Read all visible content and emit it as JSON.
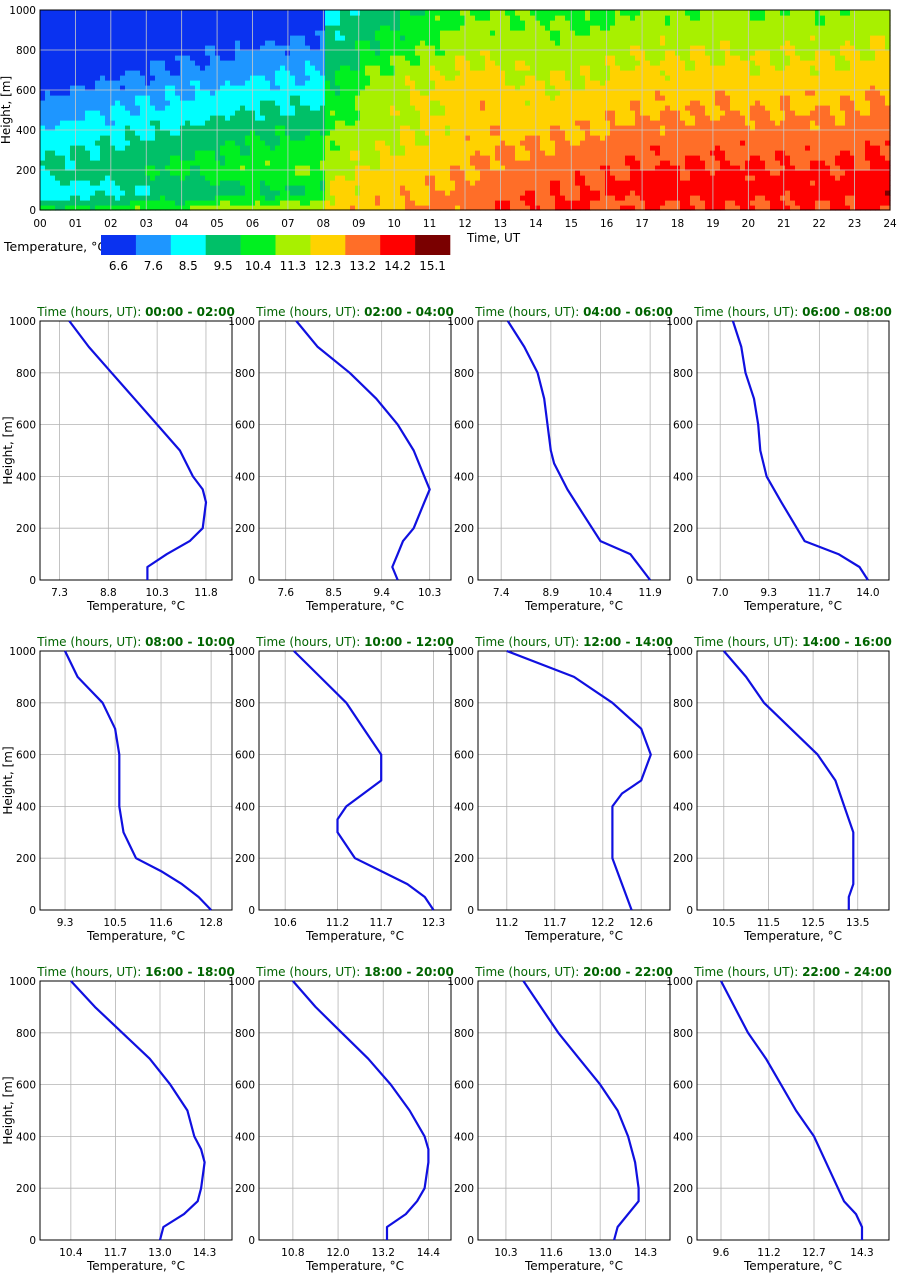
{
  "colors": {
    "profile_line": "#1010e0",
    "title_green": "#006400",
    "grid": "#b4b4b4",
    "frame": "#000000"
  },
  "heatmap": {
    "ylabel": "Height, [m]",
    "xlabel": "Time, UT",
    "x_ticks": [
      "00",
      "01",
      "02",
      "03",
      "04",
      "05",
      "06",
      "07",
      "08",
      "09",
      "10",
      "11",
      "12",
      "13",
      "14",
      "15",
      "16",
      "17",
      "18",
      "19",
      "20",
      "21",
      "22",
      "23",
      "24"
    ],
    "y_ticks": [
      "0",
      "200",
      "400",
      "600",
      "800",
      "1000"
    ],
    "ylim": [
      0,
      1000
    ],
    "xlim": [
      0,
      24
    ],
    "legend": {
      "label": "Temperature, °C",
      "values": [
        "6.6",
        "7.6",
        "8.5",
        "9.5",
        "10.4",
        "11.3",
        "12.3",
        "13.2",
        "14.2",
        "15.1"
      ],
      "colors": [
        "#0a32f0",
        "#1e96ff",
        "#00ffff",
        "#00c068",
        "#00f020",
        "#a8f000",
        "#ffd200",
        "#ff6e28",
        "#ff0000",
        "#7a0000"
      ]
    }
  },
  "chart_data": [
    {
      "type": "line",
      "title_prefix": "Time (hours, UT):",
      "title_range": "00:00 - 02:00",
      "xlabel": "Temperature, °C",
      "ylabel": "Height, [m]",
      "x_ticks": [
        "7.3",
        "8.8",
        "10.3",
        "11.8"
      ],
      "xlim": [
        6.7,
        12.6
      ],
      "ylim": [
        0,
        1000
      ],
      "y_ticks": [
        "0",
        "200",
        "400",
        "600",
        "800",
        "1000"
      ],
      "x": [
        10.0,
        10.0,
        10.6,
        11.3,
        11.7,
        11.8,
        11.7,
        11.4,
        11.0,
        10.3,
        9.6,
        8.9,
        8.2,
        7.6
      ],
      "y": [
        0,
        50,
        100,
        150,
        200,
        300,
        350,
        400,
        500,
        600,
        700,
        800,
        900,
        1000
      ]
    },
    {
      "type": "line",
      "title_prefix": "Time (hours, UT):",
      "title_range": "02:00 - 04:00",
      "xlabel": "Temperature, °C",
      "ylabel": "Height, [m]",
      "x_ticks": [
        "7.6",
        "8.5",
        "9.4",
        "10.3"
      ],
      "xlim": [
        7.1,
        10.7
      ],
      "ylim": [
        0,
        1000
      ],
      "y_ticks": [
        "0",
        "200",
        "400",
        "600",
        "800",
        "1000"
      ],
      "x": [
        9.7,
        9.6,
        9.7,
        9.8,
        10.0,
        10.2,
        10.3,
        10.2,
        10.0,
        9.7,
        9.3,
        8.8,
        8.2,
        7.8
      ],
      "y": [
        0,
        50,
        100,
        150,
        200,
        300,
        350,
        400,
        500,
        600,
        700,
        800,
        900,
        1000
      ]
    },
    {
      "type": "line",
      "title_prefix": "Time (hours, UT):",
      "title_range": "04:00 - 06:00",
      "xlabel": "Temperature, °C",
      "ylabel": "Height, [m]",
      "x_ticks": [
        "7.4",
        "8.9",
        "10.4",
        "11.9"
      ],
      "xlim": [
        6.7,
        12.5
      ],
      "ylim": [
        0,
        1000
      ],
      "y_ticks": [
        "0",
        "200",
        "400",
        "600",
        "800",
        "1000"
      ],
      "x": [
        11.9,
        11.3,
        10.4,
        9.9,
        9.4,
        9.0,
        8.9,
        8.8,
        8.7,
        8.5,
        8.1,
        7.6
      ],
      "y": [
        0,
        100,
        150,
        250,
        350,
        450,
        500,
        600,
        700,
        800,
        900,
        1000
      ]
    },
    {
      "type": "line",
      "title_prefix": "Time (hours, UT):",
      "title_range": "06:00 - 08:00",
      "xlabel": "Temperature, °C",
      "ylabel": "Height, [m]",
      "x_ticks": [
        "7.0",
        "9.3",
        "11.7",
        "14.0"
      ],
      "xlim": [
        5.9,
        15.0
      ],
      "ylim": [
        0,
        1000
      ],
      "y_ticks": [
        "0",
        "200",
        "400",
        "600",
        "800",
        "1000"
      ],
      "x": [
        14.0,
        13.6,
        12.6,
        11.0,
        9.9,
        9.2,
        8.9,
        8.8,
        8.6,
        8.2,
        8.0,
        7.6
      ],
      "y": [
        0,
        50,
        100,
        150,
        300,
        400,
        500,
        600,
        700,
        800,
        900,
        1000
      ]
    },
    {
      "type": "line",
      "title_prefix": "Time (hours, UT):",
      "title_range": "08:00 - 10:00",
      "xlabel": "Temperature, °C",
      "ylabel": "Height, [m]",
      "x_ticks": [
        "9.3",
        "10.5",
        "11.6",
        "12.8"
      ],
      "xlim": [
        8.7,
        13.3
      ],
      "ylim": [
        0,
        1000
      ],
      "y_ticks": [
        "0",
        "200",
        "400",
        "600",
        "800",
        "1000"
      ],
      "x": [
        12.8,
        12.5,
        12.1,
        11.6,
        11.0,
        10.7,
        10.6,
        10.6,
        10.6,
        10.5,
        10.2,
        9.9,
        9.6,
        9.3
      ],
      "y": [
        0,
        50,
        100,
        150,
        200,
        300,
        400,
        450,
        600,
        700,
        800,
        850,
        900,
        1000
      ]
    },
    {
      "type": "line",
      "title_prefix": "Time (hours, UT):",
      "title_range": "10:00 - 12:00",
      "xlabel": "Temperature, °C",
      "ylabel": "Height, [m]",
      "x_ticks": [
        "10.6",
        "11.2",
        "11.7",
        "12.3"
      ],
      "xlim": [
        10.3,
        12.5
      ],
      "ylim": [
        0,
        1000
      ],
      "y_ticks": [
        "0",
        "200",
        "400",
        "600",
        "800",
        "1000"
      ],
      "x": [
        12.3,
        12.2,
        12.0,
        11.7,
        11.4,
        11.2,
        11.2,
        11.3,
        11.5,
        11.7,
        11.7,
        11.5,
        11.3,
        11.0,
        10.7
      ],
      "y": [
        0,
        50,
        100,
        150,
        200,
        300,
        350,
        400,
        450,
        500,
        600,
        700,
        800,
        900,
        1000
      ]
    },
    {
      "type": "line",
      "title_prefix": "Time (hours, UT):",
      "title_range": "12:00 - 14:00",
      "xlabel": "Temperature, °C",
      "ylabel": "Height, [m]",
      "x_ticks": [
        "11.2",
        "11.7",
        "12.2",
        "12.6"
      ],
      "xlim": [
        10.9,
        12.9
      ],
      "ylim": [
        0,
        1000
      ],
      "y_ticks": [
        "0",
        "200",
        "400",
        "600",
        "800",
        "1000"
      ],
      "x": [
        12.5,
        12.4,
        12.3,
        12.3,
        12.3,
        12.3,
        12.4,
        12.6,
        12.7,
        12.6,
        12.3,
        11.9,
        11.2
      ],
      "y": [
        0,
        100,
        200,
        300,
        350,
        400,
        450,
        500,
        600,
        700,
        800,
        900,
        1000
      ]
    },
    {
      "type": "line",
      "title_prefix": "Time (hours, UT):",
      "title_range": "14:00 - 16:00",
      "xlabel": "Temperature, °C",
      "ylabel": "Height, [m]",
      "x_ticks": [
        "10.5",
        "11.5",
        "12.5",
        "13.5"
      ],
      "xlim": [
        9.9,
        14.2
      ],
      "ylim": [
        0,
        1000
      ],
      "y_ticks": [
        "0",
        "200",
        "400",
        "600",
        "800",
        "1000"
      ],
      "x": [
        13.3,
        13.3,
        13.4,
        13.4,
        13.4,
        13.3,
        13.2,
        13.0,
        12.6,
        12.0,
        11.4,
        11.0,
        10.5
      ],
      "y": [
        0,
        50,
        100,
        250,
        300,
        350,
        400,
        500,
        600,
        700,
        800,
        900,
        1000
      ]
    },
    {
      "type": "line",
      "title_prefix": "Time (hours, UT):",
      "title_range": "16:00 - 18:00",
      "xlabel": "Temperature, °C",
      "ylabel": "Height, [m]",
      "x_ticks": [
        "10.4",
        "11.7",
        "13.0",
        "14.3"
      ],
      "xlim": [
        9.5,
        15.1
      ],
      "ylim": [
        0,
        1000
      ],
      "y_ticks": [
        "0",
        "200",
        "400",
        "600",
        "800",
        "1000"
      ],
      "x": [
        13.0,
        13.1,
        13.7,
        14.1,
        14.2,
        14.3,
        14.2,
        14.0,
        13.8,
        13.3,
        12.7,
        11.9,
        11.1,
        10.4
      ],
      "y": [
        0,
        50,
        100,
        150,
        200,
        300,
        350,
        400,
        500,
        600,
        700,
        800,
        900,
        1000
      ]
    },
    {
      "type": "line",
      "title_prefix": "Time (hours, UT):",
      "title_range": "18:00 - 20:00",
      "xlabel": "Temperature, °C",
      "ylabel": "Height, [m]",
      "x_ticks": [
        "10.8",
        "12.0",
        "13.2",
        "14.4"
      ],
      "xlim": [
        9.9,
        15.0
      ],
      "ylim": [
        0,
        1000
      ],
      "y_ticks": [
        "0",
        "200",
        "400",
        "600",
        "800",
        "1000"
      ],
      "x": [
        13.3,
        13.3,
        13.8,
        14.1,
        14.3,
        14.4,
        14.4,
        14.3,
        13.9,
        13.4,
        12.8,
        12.1,
        11.4,
        10.8
      ],
      "y": [
        0,
        50,
        100,
        150,
        200,
        300,
        350,
        400,
        500,
        600,
        700,
        800,
        900,
        1000
      ]
    },
    {
      "type": "line",
      "title_prefix": "Time (hours, UT):",
      "title_range": "20:00 - 22:00",
      "xlabel": "Temperature, °C",
      "ylabel": "Height, [m]",
      "x_ticks": [
        "10.3",
        "11.6",
        "13.0",
        "14.3"
      ],
      "xlim": [
        9.5,
        15.0
      ],
      "ylim": [
        0,
        1000
      ],
      "y_ticks": [
        "0",
        "200",
        "400",
        "600",
        "800",
        "1000"
      ],
      "x": [
        13.4,
        13.5,
        14.1,
        14.1,
        14.0,
        13.8,
        13.5,
        13.0,
        12.4,
        11.8,
        11.3,
        10.8
      ],
      "y": [
        0,
        50,
        150,
        200,
        300,
        400,
        500,
        600,
        700,
        800,
        900,
        1000
      ]
    },
    {
      "type": "line",
      "title_prefix": "Time (hours, UT):",
      "title_range": "22:00 - 24:00",
      "xlabel": "Temperature, °C",
      "ylabel": "Height, [m]",
      "x_ticks": [
        "9.6",
        "11.2",
        "12.7",
        "14.3"
      ],
      "xlim": [
        8.8,
        15.2
      ],
      "ylim": [
        0,
        1000
      ],
      "y_ticks": [
        "0",
        "200",
        "400",
        "600",
        "800",
        "1000"
      ],
      "x": [
        14.3,
        14.3,
        14.1,
        13.7,
        13.3,
        12.7,
        12.1,
        11.6,
        11.1,
        10.5,
        9.6
      ],
      "y": [
        0,
        50,
        100,
        150,
        250,
        400,
        500,
        600,
        700,
        800,
        1000
      ]
    }
  ]
}
